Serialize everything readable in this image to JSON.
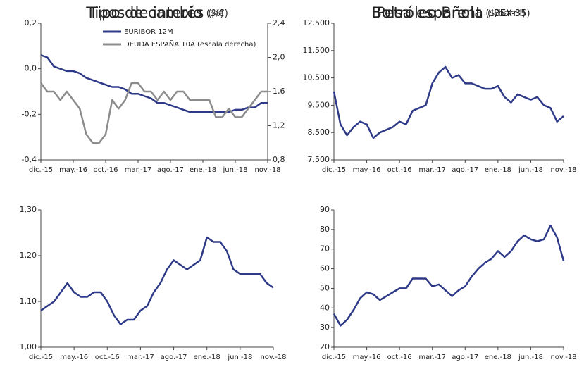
{
  "chart_data": [
    {
      "type": "line",
      "title": "Tipos de interés",
      "title_unit": "(%)",
      "categories": [
        "dic.-15",
        null,
        null,
        null,
        null,
        "may.-16",
        null,
        null,
        null,
        null,
        "oct.-16",
        null,
        null,
        null,
        null,
        "mar.-17",
        null,
        null,
        null,
        null,
        "ago.-17",
        null,
        null,
        null,
        null,
        "ene.-18",
        null,
        null,
        null,
        null,
        "jun.-18",
        null,
        null,
        null,
        null,
        "nov.-18"
      ],
      "series": [
        {
          "name": "EURIBOR 12M",
          "color": "#2e3a87",
          "values": [
            0.06,
            0.05,
            0.01,
            0.0,
            -0.01,
            -0.01,
            -0.02,
            -0.04,
            -0.05,
            -0.06,
            -0.07,
            -0.08,
            -0.08,
            -0.09,
            -0.11,
            -0.11,
            -0.12,
            -0.13,
            -0.15,
            -0.15,
            -0.16,
            -0.17,
            -0.18,
            -0.19,
            -0.19,
            -0.19,
            -0.19,
            -0.19,
            -0.19,
            -0.19,
            -0.18,
            -0.18,
            -0.17,
            -0.17,
            -0.15,
            -0.15
          ]
        },
        {
          "name": "DEUDA ESPAÑA 10A (escala derecha)",
          "color": "#8c8c8c",
          "axis": "y2",
          "values": [
            1.7,
            1.6,
            1.6,
            1.5,
            1.6,
            1.5,
            1.4,
            1.1,
            1.0,
            1.0,
            1.1,
            1.5,
            1.4,
            1.5,
            1.7,
            1.7,
            1.6,
            1.6,
            1.5,
            1.6,
            1.5,
            1.6,
            1.6,
            1.5,
            1.5,
            1.5,
            1.5,
            1.3,
            1.3,
            1.4,
            1.3,
            1.3,
            1.4,
            1.5,
            1.6,
            1.6
          ]
        }
      ],
      "ylim": [
        -0.4,
        0.2
      ],
      "yticks": [
        {
          "value": 0.2,
          "label": "0,2"
        },
        {
          "value": 0.0,
          "label": "0,0"
        },
        {
          "value": -0.2,
          "label": "-0,2"
        },
        {
          "value": -0.4,
          "label": "-0,4"
        }
      ],
      "y2lim": [
        0.8,
        2.4
      ],
      "y2ticks": [
        {
          "value": 2.4,
          "label": "2,4"
        },
        {
          "value": 2.0,
          "label": "2,0"
        },
        {
          "value": 1.6,
          "label": "1,6"
        },
        {
          "value": 1.2,
          "label": "1,2"
        },
        {
          "value": 0.8,
          "label": "0,8"
        }
      ],
      "legend": "top"
    },
    {
      "type": "line",
      "title": "Bolsa española",
      "title_unit": "(IBEX-35)",
      "categories": [
        "dic.-15",
        null,
        null,
        null,
        null,
        "may.-16",
        null,
        null,
        null,
        null,
        "oct.-16",
        null,
        null,
        null,
        null,
        "mar.-17",
        null,
        null,
        null,
        null,
        "ago.-17",
        null,
        null,
        null,
        null,
        "ene.-18",
        null,
        null,
        null,
        null,
        "jun.-18",
        null,
        null,
        null,
        null,
        "nov.-18"
      ],
      "series": [
        {
          "color": "#2e3a87",
          "values": [
            10000,
            8800,
            8400,
            8700,
            8900,
            8800,
            8300,
            8500,
            8600,
            8700,
            8900,
            8800,
            9300,
            9400,
            9500,
            10300,
            10700,
            10900,
            10500,
            10600,
            10300,
            10300,
            10200,
            10100,
            10100,
            10200,
            9800,
            9600,
            9900,
            9800,
            9700,
            9800,
            9500,
            9400,
            8900,
            9100
          ]
        }
      ],
      "ylim": [
        7500,
        12500
      ],
      "yticks": [
        {
          "value": 12500,
          "label": "12.500"
        },
        {
          "value": 11500,
          "label": "11.500"
        },
        {
          "value": 10500,
          "label": "10.500"
        },
        {
          "value": 9500,
          "label": "9.500"
        },
        {
          "value": 8500,
          "label": "8.500"
        },
        {
          "value": 7500,
          "label": "7.500"
        }
      ]
    },
    {
      "type": "line",
      "title": "Tipo de cambio",
      "title_unit": "($/€)",
      "categories": [
        "dic.-15",
        null,
        null,
        null,
        null,
        "may.-16",
        null,
        null,
        null,
        null,
        "oct.-16",
        null,
        null,
        null,
        null,
        "mar.-17",
        null,
        null,
        null,
        null,
        "ago.-17",
        null,
        null,
        null,
        null,
        "ene.-18",
        null,
        null,
        null,
        null,
        "jun.-18",
        null,
        null,
        null,
        null,
        "nov.-18"
      ],
      "series": [
        {
          "color": "#2e3a87",
          "values": [
            1.08,
            1.09,
            1.1,
            1.12,
            1.14,
            1.12,
            1.11,
            1.11,
            1.12,
            1.12,
            1.1,
            1.07,
            1.05,
            1.06,
            1.06,
            1.08,
            1.09,
            1.12,
            1.14,
            1.17,
            1.19,
            1.18,
            1.17,
            1.18,
            1.19,
            1.24,
            1.23,
            1.23,
            1.21,
            1.17,
            1.16,
            1.16,
            1.16,
            1.16,
            1.14,
            1.13
          ]
        }
      ],
      "ylim": [
        1.0,
        1.3
      ],
      "yticks": [
        {
          "value": 1.3,
          "label": "1,30"
        },
        {
          "value": 1.2,
          "label": "1,20"
        },
        {
          "value": 1.1,
          "label": "1,10"
        },
        {
          "value": 1.0,
          "label": "1,00"
        }
      ]
    },
    {
      "type": "line",
      "title": "Petróleo Brent",
      "title_unit": "($/barril)",
      "categories": [
        "dic.-15",
        null,
        null,
        null,
        null,
        "may.-16",
        null,
        null,
        null,
        null,
        "oct.-16",
        null,
        null,
        null,
        null,
        "mar.-17",
        null,
        null,
        null,
        null,
        "ago.-17",
        null,
        null,
        null,
        null,
        "ene.-18",
        null,
        null,
        null,
        null,
        "jun.-18",
        null,
        null,
        null,
        null,
        "nov.-18"
      ],
      "series": [
        {
          "color": "#2e3a87",
          "values": [
            37,
            31,
            34,
            39,
            45,
            48,
            47,
            44,
            46,
            48,
            50,
            50,
            55,
            55,
            55,
            51,
            52,
            49,
            46,
            49,
            51,
            56,
            60,
            63,
            65,
            69,
            66,
            69,
            74,
            77,
            75,
            74,
            75,
            82,
            76,
            64
          ]
        }
      ],
      "ylim": [
        20,
        90
      ],
      "yticks": [
        90,
        80,
        70,
        60,
        50,
        40,
        30,
        20
      ]
    }
  ]
}
